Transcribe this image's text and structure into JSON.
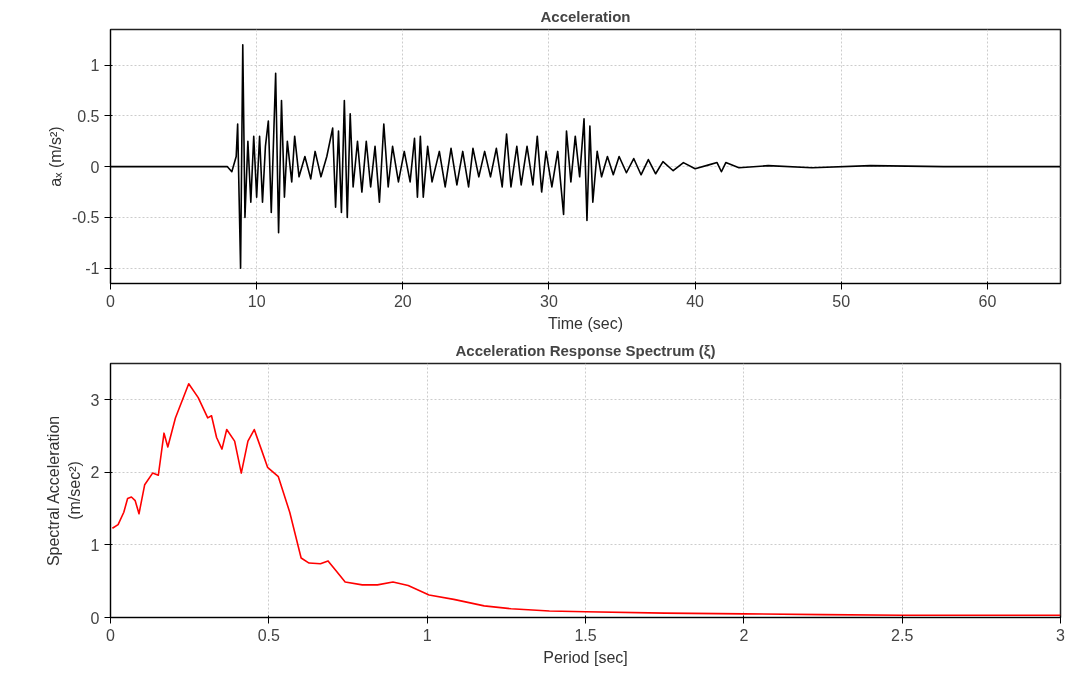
{
  "chart_data": [
    {
      "type": "line",
      "title": "Acceleration",
      "xlabel": "Time (sec)",
      "ylabel": "aₓ (m/s²)",
      "xlim": [
        0,
        65
      ],
      "ylim": [
        -1.15,
        1.35
      ],
      "xticks": [
        0,
        10,
        20,
        30,
        40,
        50,
        60
      ],
      "yticks": [
        -1,
        -0.5,
        0,
        0.5,
        1
      ],
      "grid": true,
      "marker": "none",
      "line_style": "solid",
      "series": [
        {
          "color": "#000000",
          "x": [
            0,
            8,
            8.3,
            8.6,
            8.7,
            8.8,
            8.9,
            9.05,
            9.2,
            9.4,
            9.6,
            9.8,
            10.0,
            10.2,
            10.4,
            10.6,
            10.8,
            11.0,
            11.3,
            11.5,
            11.7,
            11.9,
            12.1,
            12.4,
            12.6,
            12.9,
            13.3,
            13.7,
            14.0,
            14.4,
            14.8,
            15.2,
            15.4,
            15.6,
            15.8,
            16.0,
            16.2,
            16.4,
            16.6,
            16.9,
            17.2,
            17.5,
            17.8,
            18.1,
            18.4,
            18.7,
            19.0,
            19.3,
            19.7,
            20.1,
            20.5,
            20.8,
            21.0,
            21.2,
            21.4,
            21.7,
            22.0,
            22.5,
            22.9,
            23.3,
            23.7,
            24.1,
            24.5,
            24.8,
            25.2,
            25.6,
            26.0,
            26.4,
            26.8,
            27.1,
            27.4,
            27.8,
            28.1,
            28.5,
            28.9,
            29.2,
            29.5,
            29.8,
            30.2,
            30.6,
            31.0,
            31.2,
            31.5,
            31.8,
            32.1,
            32.4,
            32.6,
            32.8,
            33.0,
            33.3,
            33.6,
            34.0,
            34.4,
            34.8,
            35.3,
            35.8,
            36.3,
            36.8,
            37.3,
            37.8,
            38.5,
            39.2,
            40,
            41,
            41.5,
            41.8,
            42.1,
            43,
            45,
            48,
            52,
            57,
            65
          ],
          "values": [
            0,
            0,
            -0.05,
            0.1,
            0.42,
            -0.3,
            -1.0,
            1.2,
            -0.5,
            0.25,
            -0.35,
            0.3,
            -0.3,
            0.3,
            -0.35,
            0.2,
            0.45,
            -0.45,
            0.92,
            -0.65,
            0.65,
            -0.3,
            0.25,
            -0.15,
            0.3,
            -0.1,
            0.1,
            -0.12,
            0.15,
            -0.1,
            0.1,
            0.38,
            -0.4,
            0.35,
            -0.45,
            0.65,
            -0.5,
            0.52,
            -0.2,
            0.25,
            -0.25,
            0.25,
            -0.2,
            0.2,
            -0.35,
            0.42,
            -0.2,
            0.2,
            -0.15,
            0.15,
            -0.15,
            0.28,
            -0.3,
            0.3,
            -0.3,
            0.2,
            -0.15,
            0.15,
            -0.2,
            0.18,
            -0.18,
            0.15,
            -0.2,
            0.18,
            -0.1,
            0.15,
            -0.1,
            0.18,
            -0.2,
            0.32,
            -0.2,
            0.2,
            -0.18,
            0.2,
            -0.18,
            0.3,
            -0.25,
            0.15,
            -0.2,
            0.15,
            -0.47,
            0.35,
            -0.15,
            0.3,
            -0.1,
            0.47,
            -0.53,
            0.4,
            -0.35,
            0.15,
            -0.1,
            0.1,
            -0.08,
            0.1,
            -0.06,
            0.08,
            -0.08,
            0.07,
            -0.07,
            0.05,
            -0.04,
            0.04,
            -0.02,
            0.02,
            0.04,
            -0.05,
            0.04,
            -0.01,
            0.01,
            -0.01,
            0.01,
            0,
            0
          ]
        }
      ]
    },
    {
      "type": "line",
      "title": "Acceleration Response Spectrum (ξ)",
      "xlabel": "Period [sec]",
      "ylabel": "Spectral Acceleration\n(m/sec²)",
      "xlim": [
        0,
        3
      ],
      "ylim": [
        0,
        3.5
      ],
      "xticks": [
        0,
        0.5,
        1,
        1.5,
        2,
        2.5,
        3
      ],
      "yticks": [
        0,
        1,
        2,
        3
      ],
      "grid": true,
      "marker": "none",
      "line_style": "solid",
      "series": [
        {
          "color": "#ff0000",
          "x": [
            0.006,
            0.024,
            0.042,
            0.054,
            0.066,
            0.078,
            0.09,
            0.108,
            0.133,
            0.151,
            0.169,
            0.181,
            0.205,
            0.247,
            0.277,
            0.307,
            0.319,
            0.335,
            0.352,
            0.367,
            0.392,
            0.413,
            0.434,
            0.454,
            0.476,
            0.496,
            0.53,
            0.566,
            0.602,
            0.627,
            0.663,
            0.687,
            0.711,
            0.741,
            0.795,
            0.843,
            0.892,
            0.94,
            1.006,
            1.084,
            1.18,
            1.265,
            1.386,
            1.5,
            1.75,
            2.0,
            2.25,
            2.5,
            2.75,
            3.0
          ],
          "values": [
            1.23,
            1.28,
            1.45,
            1.64,
            1.66,
            1.61,
            1.43,
            1.83,
            1.99,
            1.96,
            2.54,
            2.35,
            2.75,
            3.22,
            3.03,
            2.75,
            2.78,
            2.48,
            2.32,
            2.59,
            2.43,
            1.99,
            2.43,
            2.59,
            2.32,
            2.07,
            1.94,
            1.45,
            0.82,
            0.75,
            0.74,
            0.78,
            0.65,
            0.49,
            0.45,
            0.45,
            0.49,
            0.44,
            0.31,
            0.25,
            0.16,
            0.12,
            0.09,
            0.08,
            0.06,
            0.05,
            0.04,
            0.03,
            0.03,
            0.03
          ]
        }
      ]
    }
  ]
}
